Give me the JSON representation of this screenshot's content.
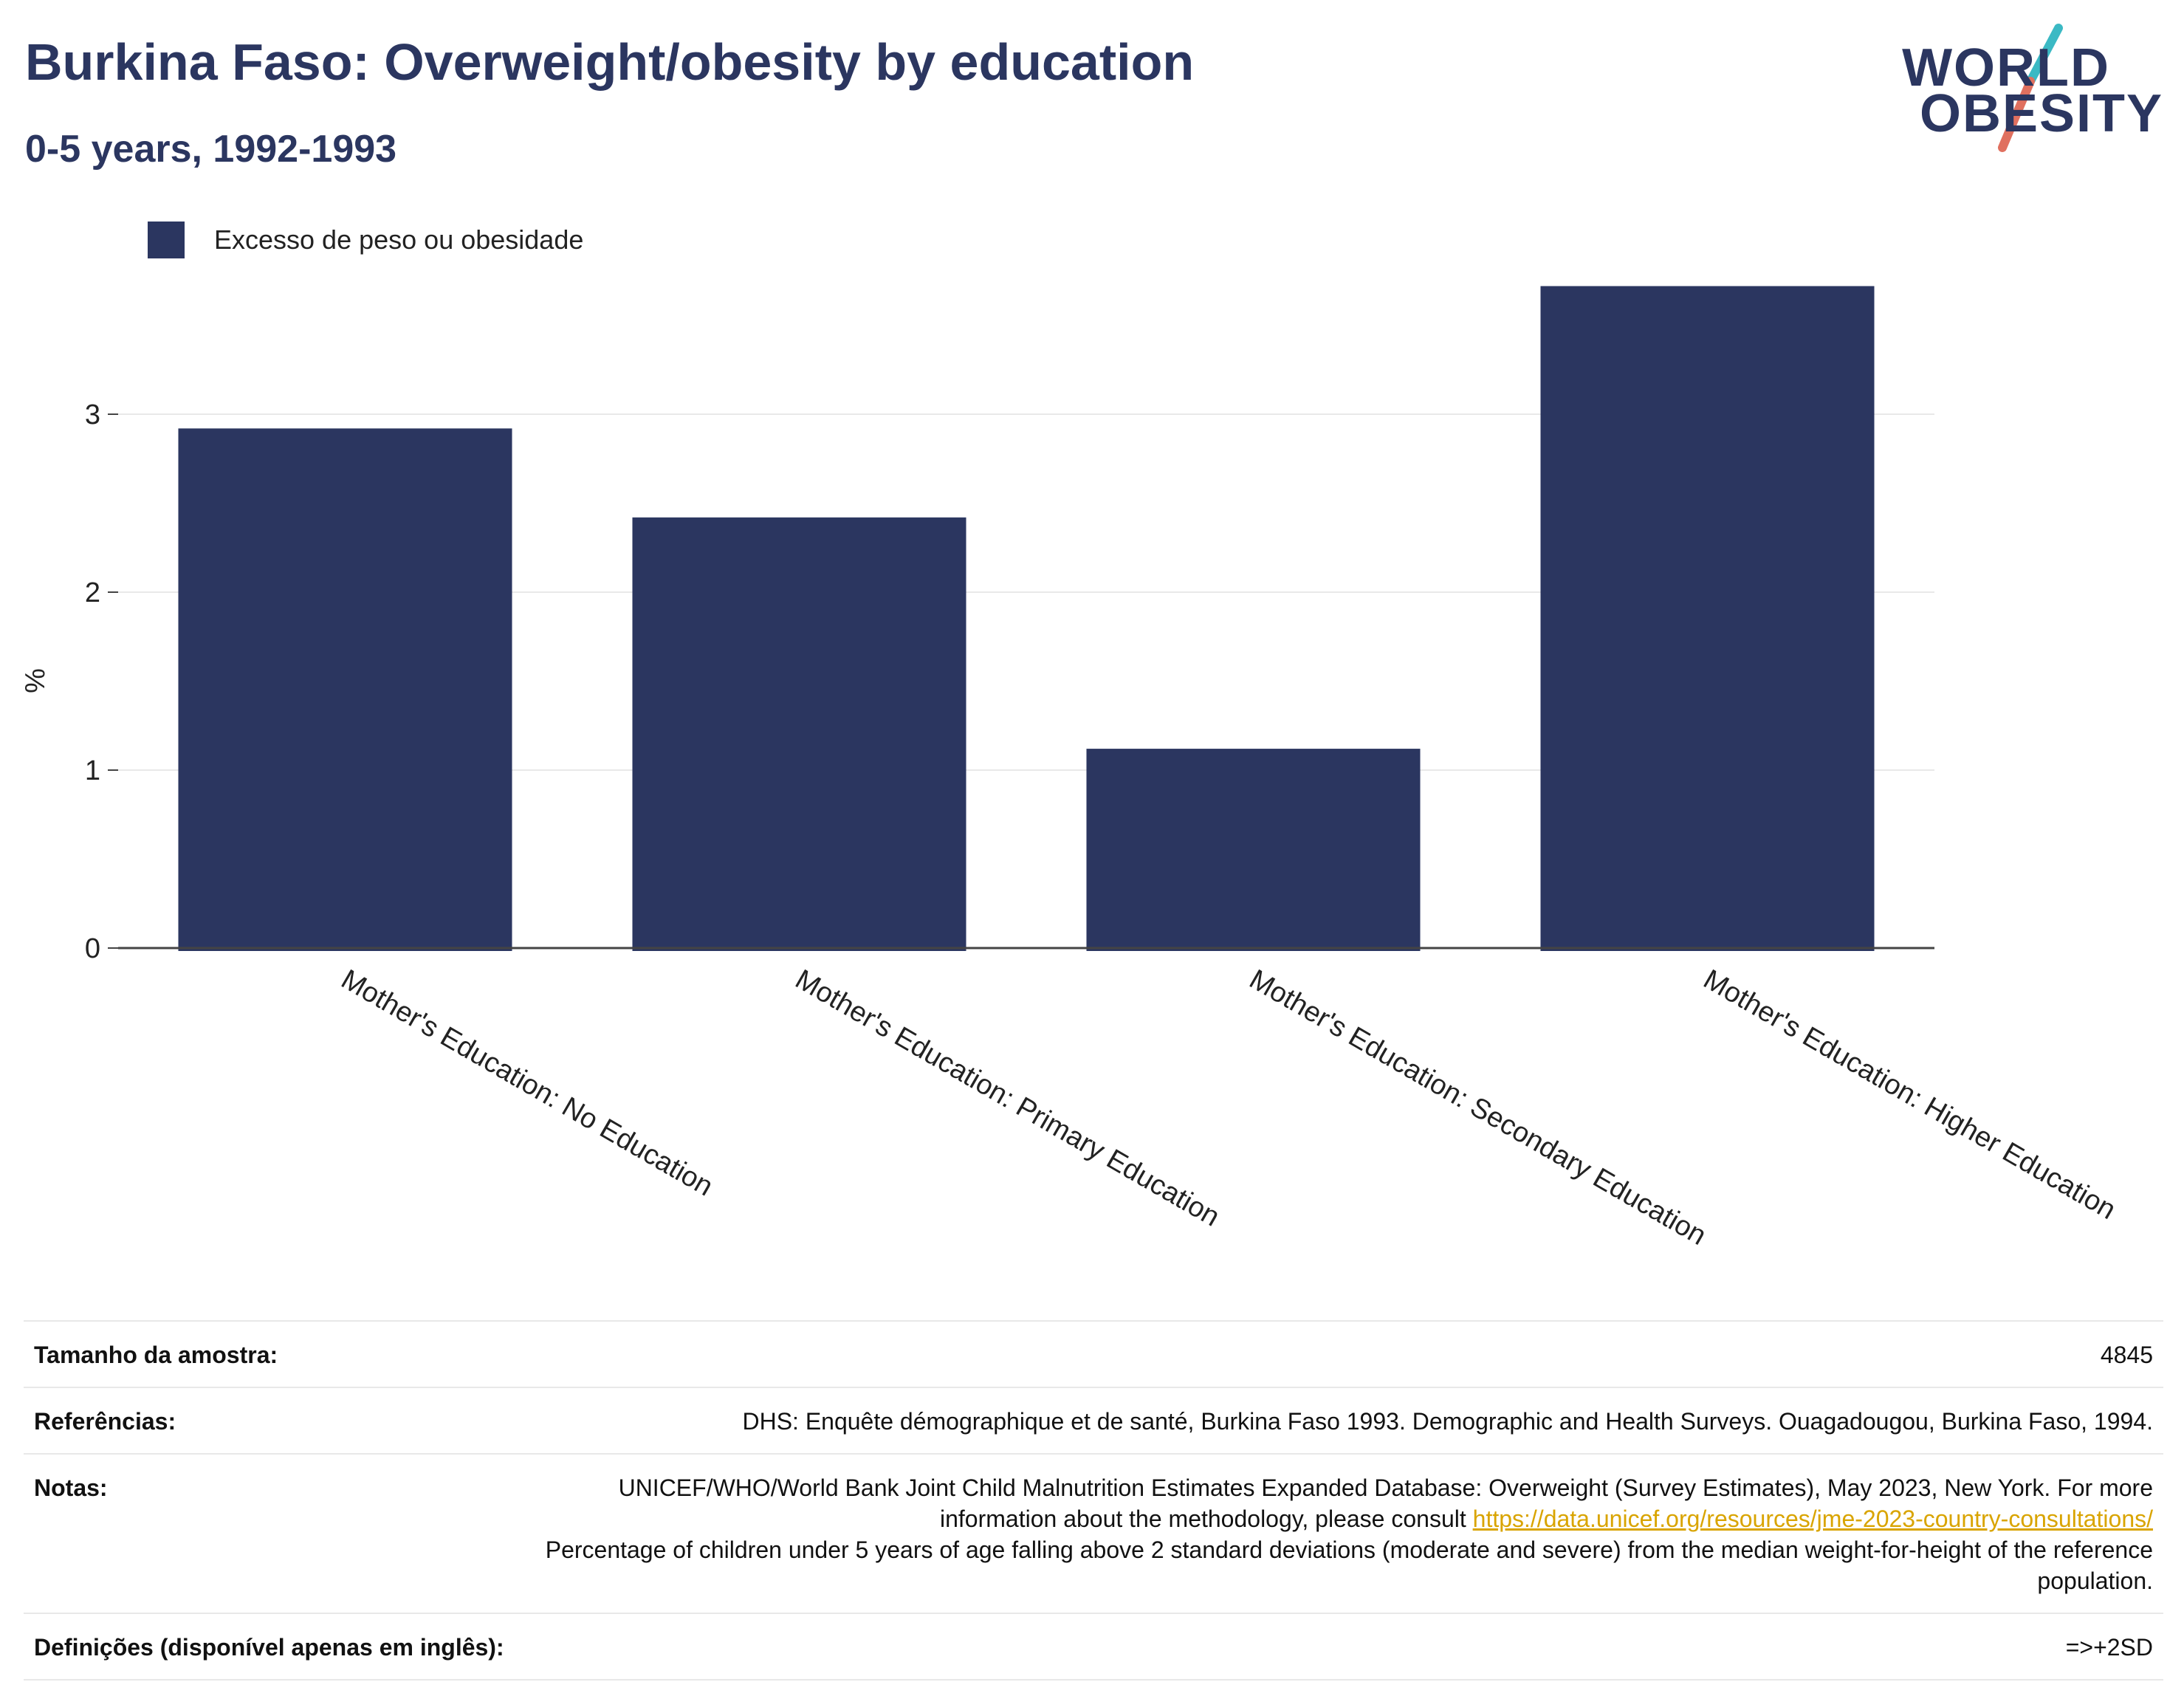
{
  "header": {
    "title": "Burkina Faso: Overweight/obesity by education",
    "subtitle": "0-5 years, 1992-1993"
  },
  "logo": {
    "line1": "WORLD",
    "line2": "OBESITY",
    "accent_teal": "#3bb9c4",
    "accent_coral": "#e0705f"
  },
  "colors": {
    "bar": "#2b3660",
    "grid": "#e9e9e9",
    "axis": "#444444"
  },
  "chart_data": {
    "type": "bar",
    "title": "Burkina Faso: Overweight/obesity by education",
    "subtitle": "0-5 years, 1992-1993",
    "categories": [
      "Mother's Education: No Education",
      "Mother's Education: Primary Education",
      "Mother's Education: Secondary Education",
      "Mother's Education: Higher Education"
    ],
    "series": [
      {
        "name": "Excesso de peso ou obesidade",
        "values": [
          2.92,
          2.42,
          1.12,
          3.72
        ],
        "color": "#2b3660"
      }
    ],
    "ylabel": "%",
    "xlabel": "",
    "ylim": [
      0,
      4.0
    ],
    "yticks": [
      0,
      1,
      2,
      3
    ],
    "grid": true,
    "legend": "top-left"
  },
  "meta": {
    "sample_label": "Tamanho da amostra:",
    "sample_value": "4845",
    "refs_label": "Referências:",
    "refs_value": "DHS: Enquête démographique et de santé, Burkina Faso 1993. Demographic and Health Surveys. Ouagadougou, Burkina Faso, 1994.",
    "notes_label": "Notas:",
    "notes_part1": "UNICEF/WHO/World Bank Joint Child Malnutrition Estimates Expanded Database: Overweight (Survey Estimates), May 2023, New York. For more information about the methodology, please consult ",
    "notes_link": "https://data.unicef.org/resources/jme-2023-country-consultations/",
    "notes_part2": "Percentage of children under 5 years of age falling above 2 standard deviations (moderate and severe) from the median weight-for-height of the reference population.",
    "defs_label": "Definições (disponível apenas em inglês):",
    "defs_value": "=>+2SD"
  }
}
